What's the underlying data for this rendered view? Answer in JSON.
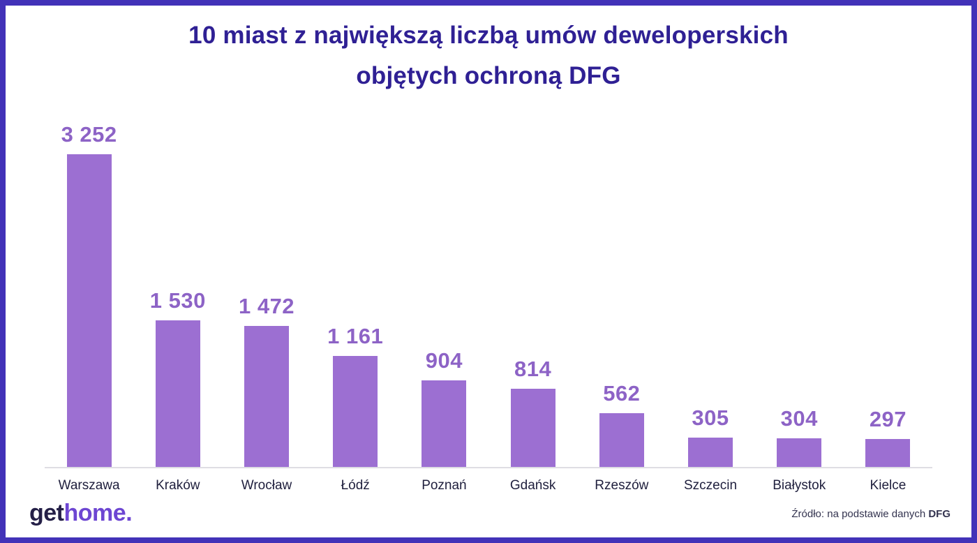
{
  "title": {
    "line1": "10 miast z największą liczbą umów deweloperskich",
    "line2": "objętych ochroną DFG"
  },
  "footer": {
    "logo_get": "get",
    "logo_home": "home",
    "logo_dot": ".",
    "source_prefix": "Źródło: na podstawie danych ",
    "source_bold": "DFG"
  },
  "colors": {
    "border": "#4232b8",
    "title": "#2f2094",
    "bar": "#9c6fd2",
    "value_label": "#8d63c6",
    "city_label": "#20203e",
    "baseline": "#dedde3",
    "logo_get": "#241f47",
    "logo_home": "#6d46d2",
    "source_text": "#33334f"
  },
  "chart_data": {
    "type": "bar",
    "title": "10 miast z największą liczbą umów deweloperskich objętych ochroną DFG",
    "categories": [
      "Warszawa",
      "Kraków",
      "Wrocław",
      "Łódź",
      "Poznań",
      "Gdańsk",
      "Rzeszów",
      "Szczecin",
      "Białystok",
      "Kielce"
    ],
    "values": [
      3252,
      1530,
      1472,
      1161,
      904,
      814,
      562,
      305,
      304,
      297
    ],
    "value_labels": [
      "3 252",
      "1 530",
      "1 472",
      "1 161",
      "904",
      "814",
      "562",
      "305",
      "304",
      "297"
    ],
    "xlabel": "",
    "ylabel": "",
    "ylim": [
      0,
      3252
    ],
    "grid": false,
    "legend": false,
    "bar_color": "#9c6fd2"
  }
}
